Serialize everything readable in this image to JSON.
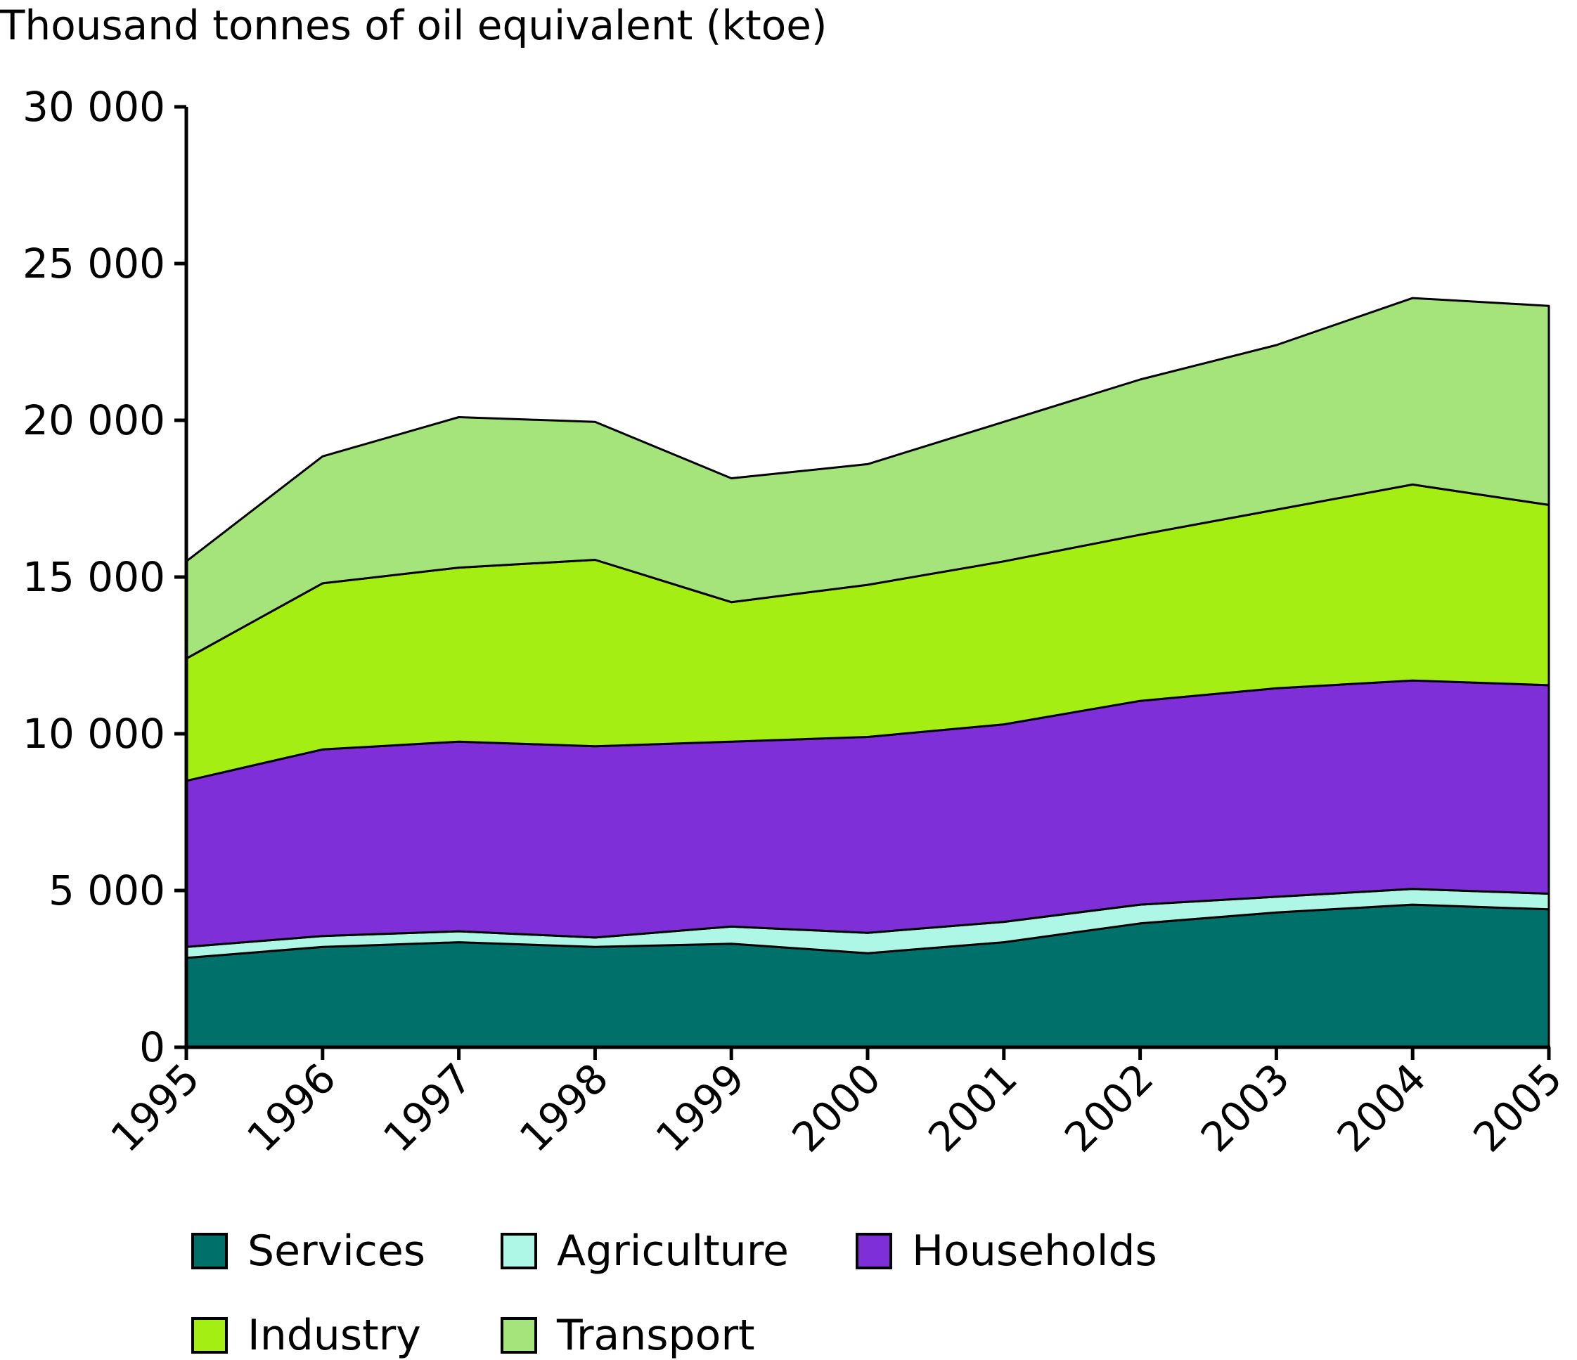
{
  "chart_data": {
    "type": "area",
    "stacked": true,
    "title": "Thousand tonnes of oil equivalent (ktoe)",
    "xlabel": "",
    "ylabel": "Thousand tonnes of oil equivalent (ktoe)",
    "ylim": [
      0,
      30000
    ],
    "yticks": [
      0,
      5000,
      10000,
      15000,
      20000,
      25000,
      30000
    ],
    "ytick_labels": [
      "0",
      "5 000",
      "10 000",
      "15 000",
      "20 000",
      "25 000",
      "30 000"
    ],
    "categories": [
      "1995",
      "1996",
      "1997",
      "1998",
      "1999",
      "2000",
      "2001",
      "2002",
      "2003",
      "2004",
      "2005"
    ],
    "grid": false,
    "legend_position": "bottom",
    "series": [
      {
        "name": "Services",
        "color": "#00706a",
        "values": [
          2850,
          3200,
          3350,
          3200,
          3300,
          3000,
          3350,
          3950,
          4300,
          4550,
          4400
        ]
      },
      {
        "name": "Agriculture",
        "color": "#aef7e6",
        "values": [
          350,
          350,
          350,
          300,
          550,
          650,
          650,
          600,
          500,
          500,
          500
        ]
      },
      {
        "name": "Households",
        "color": "#7f2fd7",
        "values": [
          5300,
          5950,
          6050,
          6100,
          5900,
          6250,
          6300,
          6500,
          6650,
          6650,
          6650
        ]
      },
      {
        "name": "Industry",
        "color": "#a5ee14",
        "values": [
          3900,
          5300,
          5550,
          5950,
          4450,
          4850,
          5200,
          5300,
          5700,
          6250,
          5750
        ]
      },
      {
        "name": "Transport",
        "color": "#a4e47a",
        "values": [
          3100,
          4050,
          4800,
          4400,
          3950,
          3850,
          4450,
          4950,
          5250,
          5950,
          6350
        ]
      }
    ]
  }
}
